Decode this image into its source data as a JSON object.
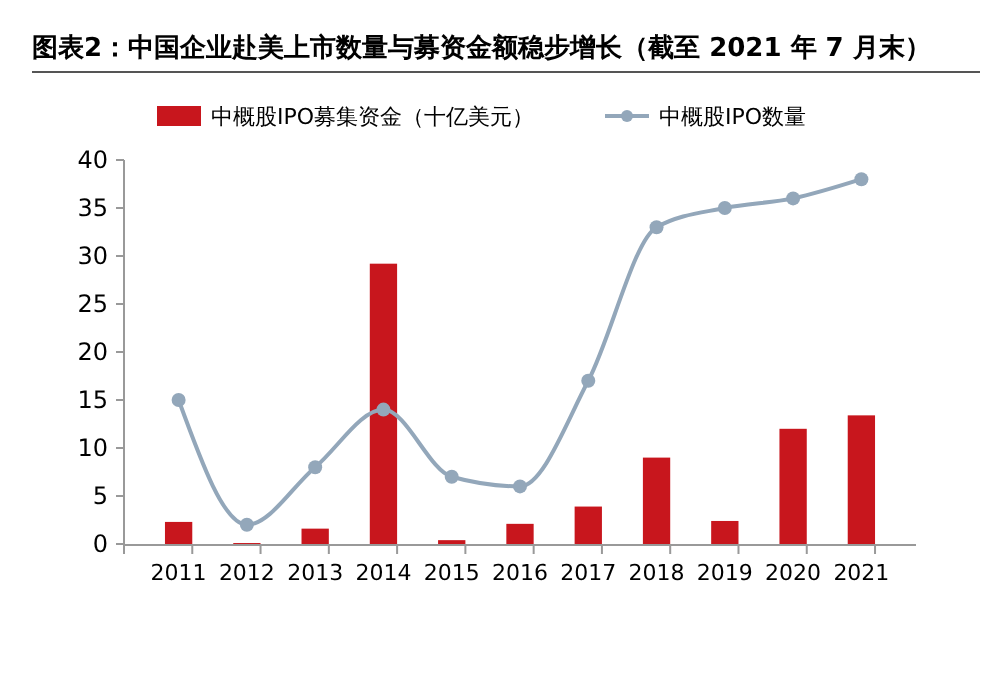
{
  "chart_data": {
    "type": "bar",
    "title": "图表2：中国企业赴美上市数量与募资金额稳步增长（截至 2021 年 7 月末）",
    "categories": [
      "2011",
      "2012",
      "2013",
      "2014",
      "2015",
      "2016",
      "2017",
      "2018",
      "2019",
      "2020",
      "2021"
    ],
    "series": [
      {
        "name": "中概股IPO募集资金（十亿美元）",
        "color": "#c8161d",
        "values": [
          2.3,
          0.1,
          1.6,
          29.2,
          0.4,
          2.1,
          3.9,
          9.0,
          2.4,
          12.0,
          13.4
        ]
      },
      {
        "name": "中概股IPO数量",
        "type": "line",
        "color": "#93a7ba",
        "marker": "circle",
        "values": [
          15,
          2,
          8,
          14,
          7,
          6,
          17,
          33,
          35,
          36,
          38
        ]
      }
    ],
    "ylim": [
      0,
      40
    ],
    "yticks": [
      0,
      5,
      10,
      15,
      20,
      25,
      30,
      35,
      40
    ],
    "grid": false,
    "legend": "top"
  }
}
